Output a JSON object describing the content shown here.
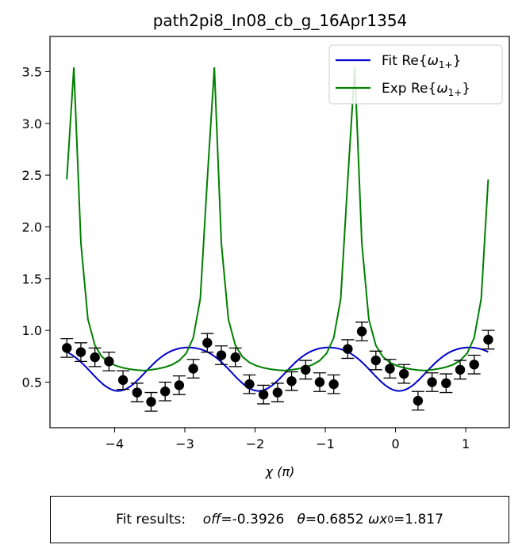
{
  "chart_data": {
    "type": "line",
    "title": "path2pi8_In08_cb_g_16Apr1354",
    "xlabel": "χ (π)",
    "ylabel": "",
    "xlim": [
      -4.92,
      1.62
    ],
    "ylim": [
      0.06,
      3.84
    ],
    "xticks": [
      -4,
      -3,
      -2,
      -1,
      0,
      1
    ],
    "xtick_labels": [
      "−4",
      "−3",
      "−2",
      "−1",
      "0",
      "1"
    ],
    "yticks": [
      0.5,
      1.0,
      1.5,
      2.0,
      2.5,
      3.0,
      3.5
    ],
    "ytick_labels": [
      "0.5",
      "1.0",
      "1.5",
      "2.0",
      "2.5",
      "3.0",
      "3.5"
    ],
    "grid": false,
    "legend_position": "top-right",
    "series": [
      {
        "name": "Fit Re{ω1+}",
        "legend_main": "Fit Re{",
        "legend_sub": "1+",
        "legend_close": "}",
        "color": "#0000cc",
        "model": "fit",
        "params": {
          "off": -0.3926,
          "theta": 0.6852,
          "wx0": 1.817
        },
        "x_range": [
          -4.68,
          1.32
        ]
      },
      {
        "name": "Exp Re{ω1+}",
        "legend_main": "Exp Re{",
        "legend_sub": "1+",
        "legend_close": "}",
        "color": "#008000",
        "model": "exp",
        "peaks": [
          -4.6,
          -2.6,
          -0.6
        ],
        "x_range": [
          -4.68,
          1.32
        ]
      }
    ],
    "points": {
      "color": "#000000",
      "x": [
        -4.68,
        -4.48,
        -4.28,
        -4.08,
        -3.88,
        -3.68,
        -3.48,
        -3.28,
        -3.08,
        -2.88,
        -2.68,
        -2.48,
        -2.28,
        -2.08,
        -1.88,
        -1.68,
        -1.48,
        -1.28,
        -1.08,
        -0.88,
        -0.68,
        -0.48,
        -0.28,
        -0.08,
        0.12,
        0.32,
        0.52,
        0.72,
        0.92,
        1.12,
        1.32
      ],
      "y": [
        0.83,
        0.79,
        0.74,
        0.7,
        0.52,
        0.4,
        0.31,
        0.41,
        0.47,
        0.63,
        0.88,
        0.76,
        0.74,
        0.48,
        0.38,
        0.4,
        0.51,
        0.62,
        0.5,
        0.48,
        0.82,
        0.99,
        0.71,
        0.63,
        0.58,
        0.32,
        0.5,
        0.49,
        0.62,
        0.67,
        0.91
      ],
      "err": [
        0.09,
        0.09,
        0.09,
        0.09,
        0.09,
        0.09,
        0.09,
        0.09,
        0.09,
        0.09,
        0.09,
        0.09,
        0.09,
        0.09,
        0.09,
        0.09,
        0.09,
        0.09,
        0.09,
        0.09,
        0.09,
        0.09,
        0.09,
        0.09,
        0.09,
        0.09,
        0.09,
        0.09,
        0.09,
        0.09,
        0.09
      ]
    }
  },
  "fit_results": {
    "label": "Fit results:",
    "off_symbol": "off",
    "off_value": "=-0.3926",
    "theta_symbol": "θ",
    "theta_value": "=0.6852",
    "wx0_symbol": "ωx",
    "wx0_sub": "0",
    "wx0_value": "=1.817"
  }
}
